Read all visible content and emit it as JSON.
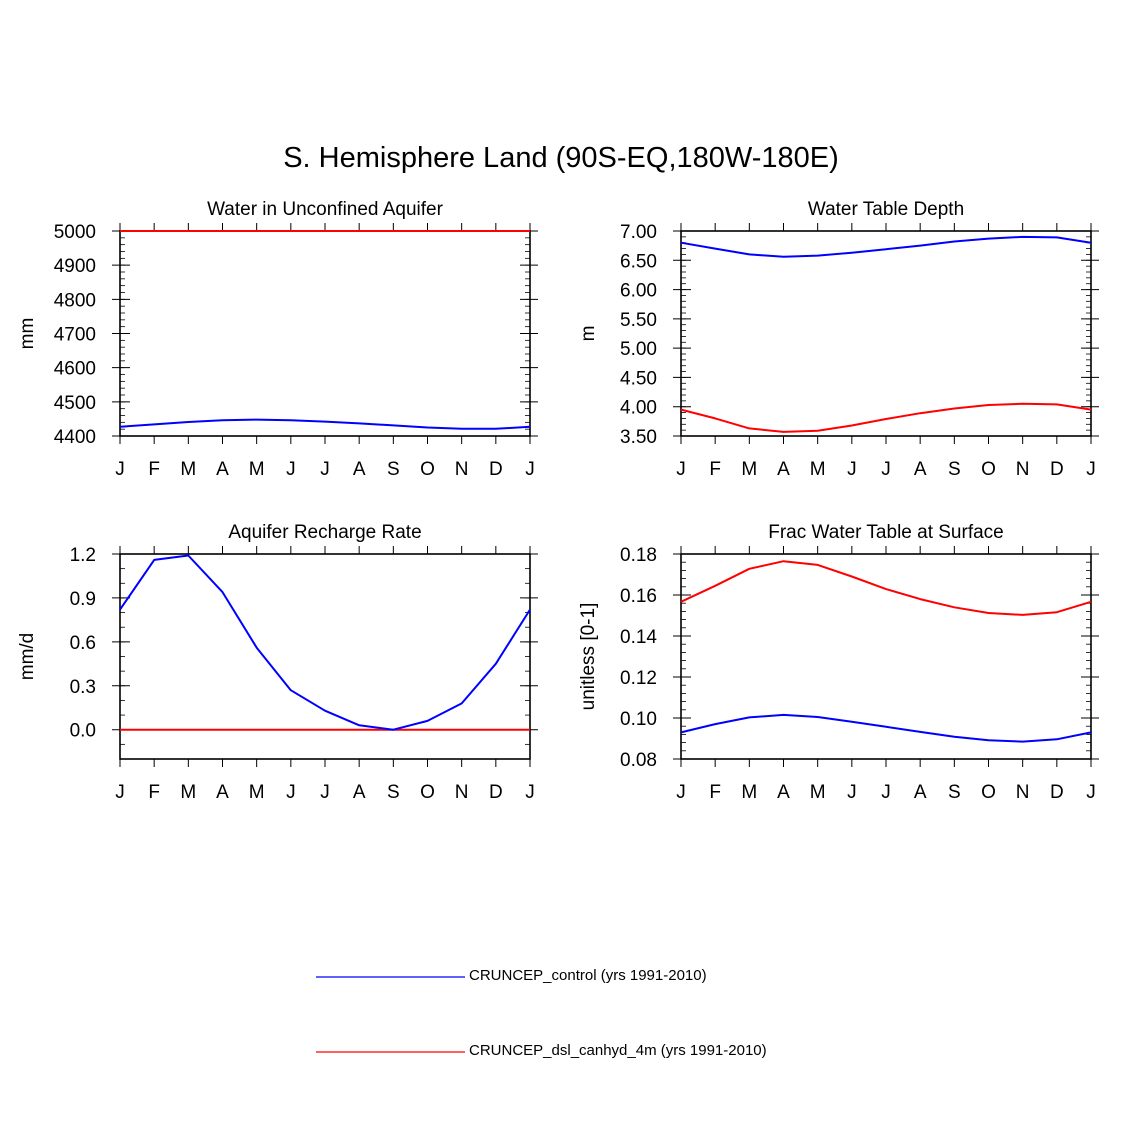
{
  "figure": {
    "title": "S. Hemisphere Land (90S-EQ,180W-180E)"
  },
  "legend": {
    "entries": [
      {
        "label": "CRUNCEP_control (yrs 1991-2010)",
        "color": "#0000ff"
      },
      {
        "label": "CRUNCEP_dsl_canhyd_4m (yrs 1991-2010)",
        "color": "#ff0000"
      }
    ]
  },
  "chart_data": [
    {
      "type": "line",
      "title": "Water in Unconfined Aquifer",
      "xlabel": "",
      "ylabel": "mm",
      "categories": [
        "J",
        "F",
        "M",
        "A",
        "M",
        "J",
        "J",
        "A",
        "S",
        "O",
        "N",
        "D",
        "J"
      ],
      "ylim": [
        4400,
        5000
      ],
      "yticks": [
        4400,
        4500,
        4600,
        4700,
        4800,
        4900,
        5000
      ],
      "ytick_labels": [
        "4400",
        "4500",
        "4600",
        "4700",
        "4800",
        "4900",
        "5000"
      ],
      "yminor_step": 20,
      "series": [
        {
          "name": "CRUNCEP_control (yrs 1991-2010)",
          "color": "#0000ff",
          "values": [
            4427,
            4434,
            4441,
            4446,
            4448,
            4446,
            4442,
            4437,
            4431,
            4425,
            4421,
            4421,
            4427
          ]
        },
        {
          "name": "CRUNCEP_dsl_canhyd_4m (yrs 1991-2010)",
          "color": "#ff0000",
          "values": [
            5000,
            5000,
            5000,
            5000,
            5000,
            5000,
            5000,
            5000,
            5000,
            5000,
            5000,
            5000,
            5000
          ]
        }
      ]
    },
    {
      "type": "line",
      "title": "Water Table Depth",
      "xlabel": "",
      "ylabel": "m",
      "categories": [
        "J",
        "F",
        "M",
        "A",
        "M",
        "J",
        "J",
        "A",
        "S",
        "O",
        "N",
        "D",
        "J"
      ],
      "ylim": [
        3.5,
        7.0
      ],
      "yticks": [
        3.5,
        4.0,
        4.5,
        5.0,
        5.5,
        6.0,
        6.5,
        7.0
      ],
      "ytick_labels": [
        "3.50",
        "4.00",
        "4.50",
        "5.00",
        "5.50",
        "6.00",
        "6.50",
        "7.00"
      ],
      "yminor_step": 0.1,
      "series": [
        {
          "name": "CRUNCEP_control (yrs 1991-2010)",
          "color": "#0000ff",
          "values": [
            6.8,
            6.7,
            6.6,
            6.56,
            6.58,
            6.63,
            6.69,
            6.75,
            6.82,
            6.87,
            6.9,
            6.89,
            6.8
          ]
        },
        {
          "name": "CRUNCEP_dsl_canhyd_4m (yrs 1991-2010)",
          "color": "#ff0000",
          "values": [
            3.95,
            3.8,
            3.63,
            3.57,
            3.59,
            3.68,
            3.79,
            3.89,
            3.97,
            4.03,
            4.05,
            4.04,
            3.95
          ]
        }
      ]
    },
    {
      "type": "line",
      "title": "Aquifer Recharge Rate",
      "xlabel": "",
      "ylabel": "mm/d",
      "categories": [
        "J",
        "F",
        "M",
        "A",
        "M",
        "J",
        "J",
        "A",
        "S",
        "O",
        "N",
        "D",
        "J"
      ],
      "ylim": [
        -0.2,
        1.2
      ],
      "yticks": [
        0.0,
        0.3,
        0.6,
        0.9,
        1.2
      ],
      "ytick_labels": [
        "0.0",
        "0.3",
        "0.6",
        "0.9",
        "1.2"
      ],
      "yminor_step": 0.1,
      "series": [
        {
          "name": "CRUNCEP_control (yrs 1991-2010)",
          "color": "#0000ff",
          "values": [
            0.82,
            1.16,
            1.19,
            0.94,
            0.56,
            0.27,
            0.13,
            0.03,
            0.0,
            0.06,
            0.18,
            0.45,
            0.82
          ]
        },
        {
          "name": "CRUNCEP_dsl_canhyd_4m (yrs 1991-2010)",
          "color": "#ff0000",
          "values": [
            0,
            0,
            0,
            0,
            0,
            0,
            0,
            0,
            0,
            0,
            0,
            0,
            0
          ]
        }
      ]
    },
    {
      "type": "line",
      "title": "Frac Water Table at Surface",
      "xlabel": "",
      "ylabel": "unitless [0-1]",
      "categories": [
        "J",
        "F",
        "M",
        "A",
        "M",
        "J",
        "J",
        "A",
        "S",
        "O",
        "N",
        "D",
        "J"
      ],
      "ylim": [
        0.08,
        0.18
      ],
      "yticks": [
        0.08,
        0.1,
        0.12,
        0.14,
        0.16,
        0.18
      ],
      "ytick_labels": [
        "0.08",
        "0.10",
        "0.12",
        "0.14",
        "0.16",
        "0.18"
      ],
      "yminor_step": 0.004,
      "series": [
        {
          "name": "CRUNCEP_control (yrs 1991-2010)",
          "color": "#0000ff",
          "values": [
            0.093,
            0.097,
            0.1003,
            0.1015,
            0.1005,
            0.0982,
            0.0957,
            0.0932,
            0.0909,
            0.0891,
            0.0885,
            0.0896,
            0.093
          ]
        },
        {
          "name": "CRUNCEP_dsl_canhyd_4m (yrs 1991-2010)",
          "color": "#ff0000",
          "values": [
            0.1567,
            0.1645,
            0.1728,
            0.1765,
            0.1747,
            0.169,
            0.1629,
            0.158,
            0.154,
            0.1512,
            0.1503,
            0.1516,
            0.1567
          ]
        }
      ]
    }
  ]
}
